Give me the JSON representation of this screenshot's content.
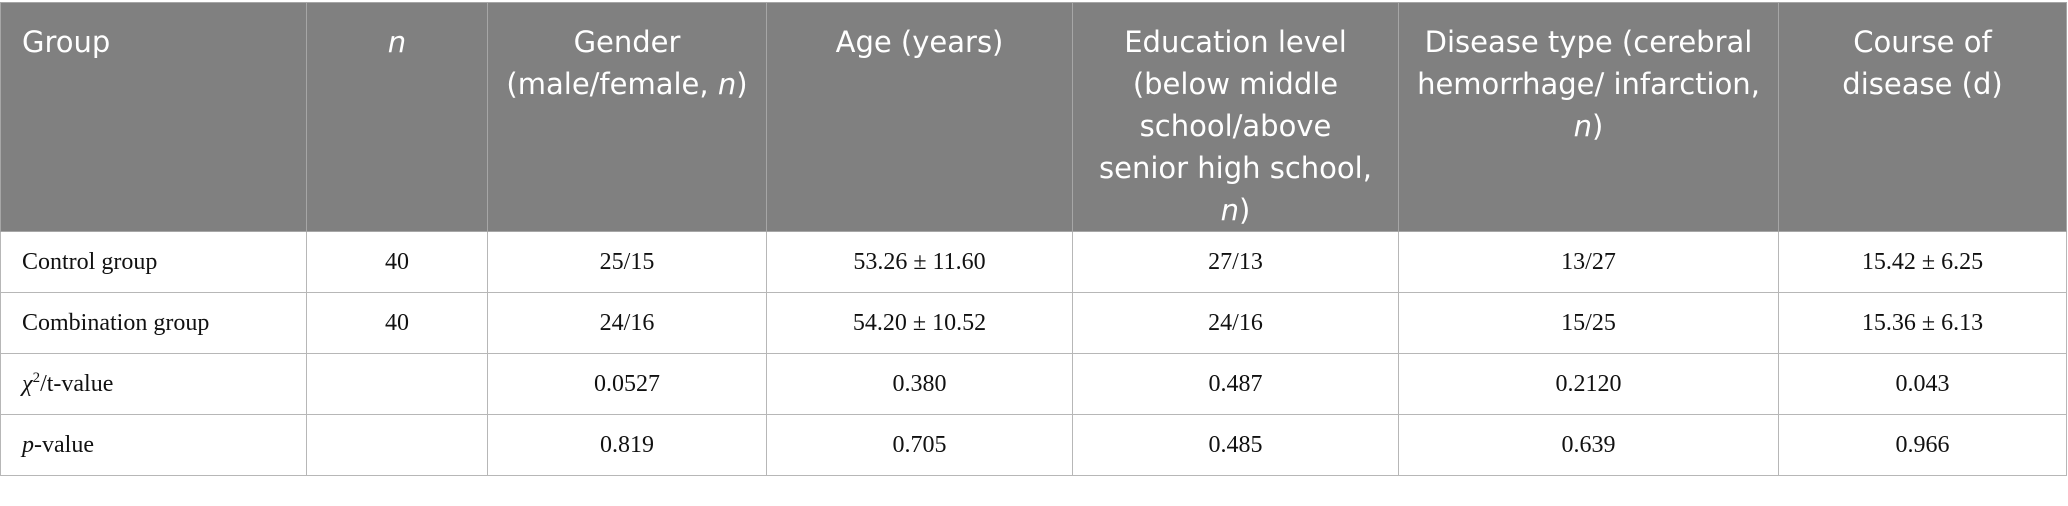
{
  "table": {
    "header": [
      [
        "Group"
      ],
      [
        "n"
      ],
      [
        "Gender (male/female, ",
        "n",
        ")"
      ],
      [
        "Age (years)"
      ],
      [
        "Education level (below middle school/above senior high school, ",
        "n",
        ")"
      ],
      [
        "Disease type (cerebral hemorrhage/ infarction, ",
        "n",
        ")"
      ],
      [
        "Course of disease (d)"
      ]
    ],
    "rows": [
      [
        [
          "Control group"
        ],
        "40",
        "25/15",
        "53.26 ± 11.60",
        "27/13",
        "13/27",
        "15.42 ± 6.25"
      ],
      [
        [
          "Combination group"
        ],
        "40",
        "24/16",
        "54.20 ± 10.52",
        "24/16",
        "15/25",
        "15.36 ± 6.13"
      ],
      [
        [
          "χ",
          "2",
          "/t-value"
        ],
        null,
        "0.0527",
        "0.380",
        "0.487",
        "0.2120",
        "0.043"
      ],
      [
        [
          "p",
          "-value"
        ],
        null,
        "0.819",
        "0.705",
        "0.485",
        "0.639",
        "0.966"
      ]
    ]
  }
}
